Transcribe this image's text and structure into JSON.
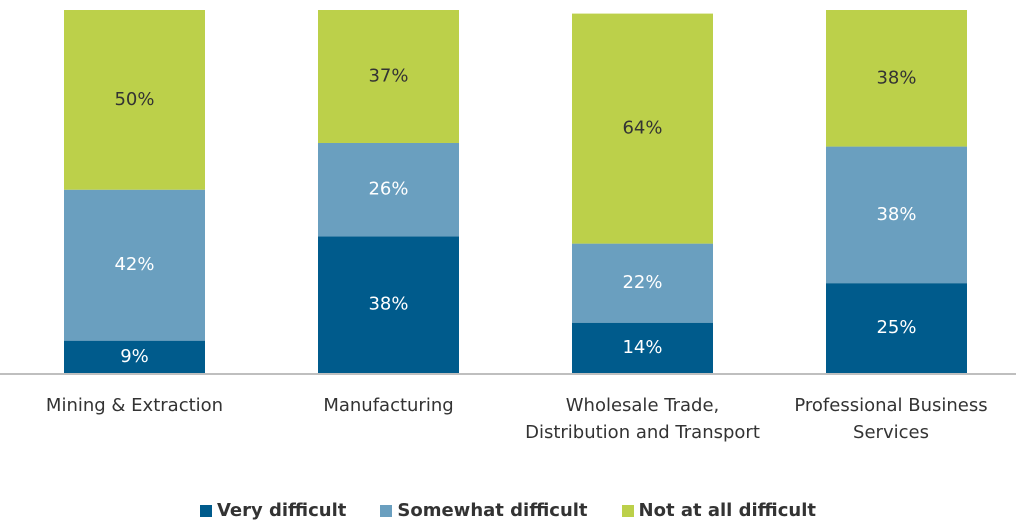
{
  "chart_data": {
    "type": "stacked_bar",
    "categories": [
      "Mining & Extraction",
      "Manufacturing",
      "Wholesale Trade, Distribution and Transport",
      "Professional Business Services"
    ],
    "series": [
      {
        "name": "Very difficult",
        "color": "#005b8c",
        "label_color": "#ffffff",
        "values": [
          9,
          38,
          14,
          25
        ],
        "value_labels": [
          "9%",
          "38%",
          "14%",
          "25%"
        ]
      },
      {
        "name": "Somewhat difficult",
        "color": "#6a9fbf",
        "label_color": "#ffffff",
        "values": [
          42,
          26,
          22,
          38
        ],
        "value_labels": [
          "42%",
          "26%",
          "22%",
          "38%"
        ]
      },
      {
        "name": "Not at all difficult",
        "color": "#bcd04a",
        "label_color": "#333333",
        "values": [
          50,
          37,
          64,
          38
        ],
        "value_labels": [
          "50%",
          "37%",
          "64%",
          "38%"
        ]
      }
    ],
    "legend": "bottom"
  }
}
